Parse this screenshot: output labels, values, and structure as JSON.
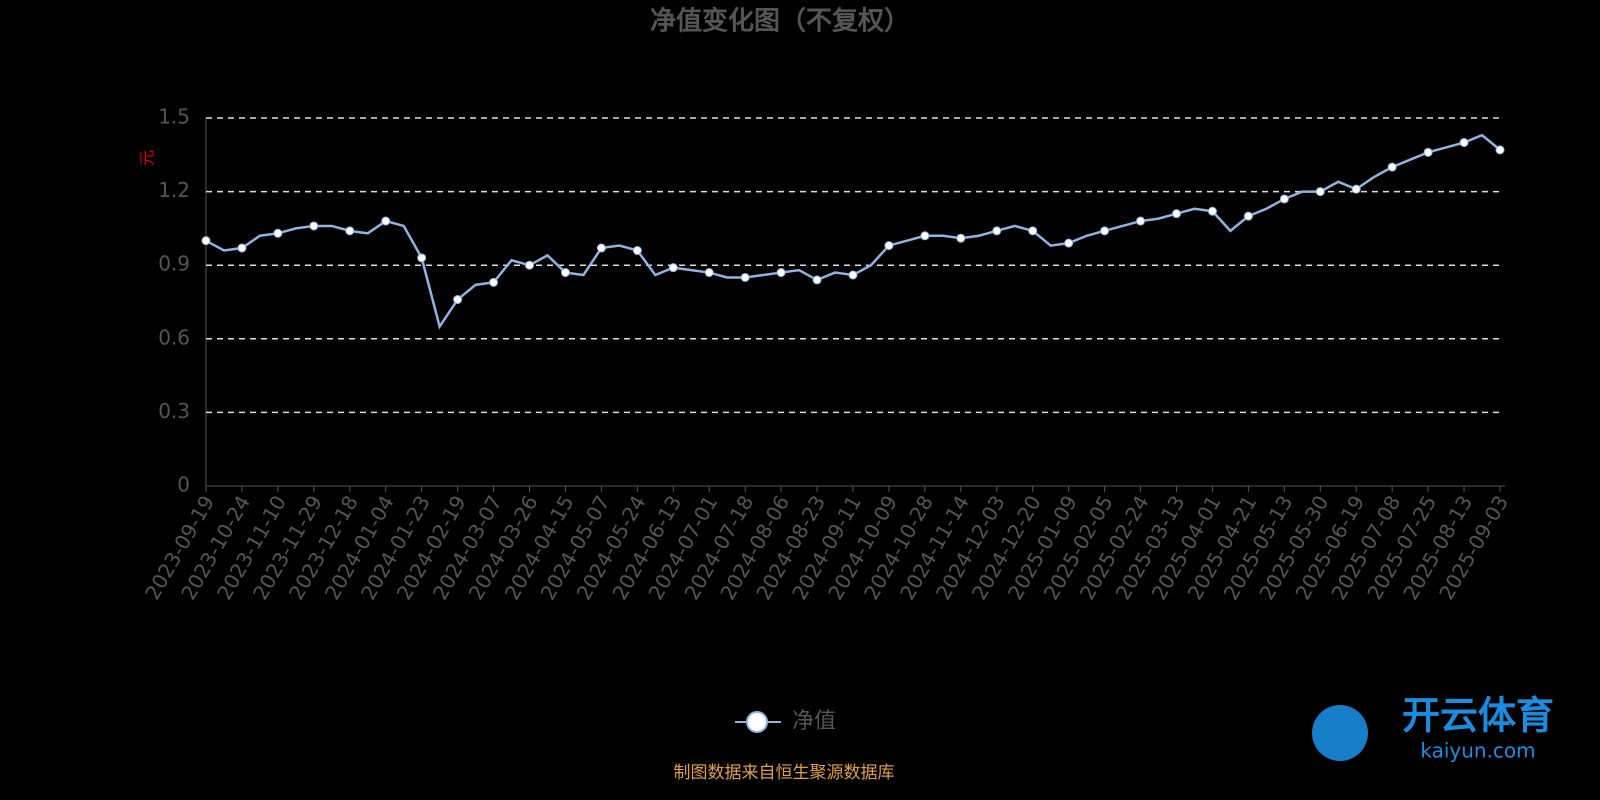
{
  "chart_data": {
    "type": "line",
    "title": "净值变化图（不复权）",
    "y_label": "元",
    "source": "制图数据来自恒生聚源数据库",
    "watermark": {
      "name": "开云体育",
      "site": "kaiyun.com"
    },
    "categories": [
      "2023-09-19",
      null,
      "2023-10-24",
      null,
      "2023-11-10",
      null,
      "2023-11-29",
      null,
      "2023-12-18",
      null,
      "2024-01-04",
      null,
      "2024-01-23",
      null,
      "2024-02-19",
      null,
      "2024-03-07",
      null,
      "2024-03-26",
      null,
      "2024-04-15",
      null,
      "2024-05-07",
      null,
      "2024-05-24",
      null,
      "2024-06-13",
      null,
      "2024-07-01",
      null,
      "2024-07-18",
      null,
      "2024-08-06",
      null,
      "2024-08-23",
      null,
      "2024-09-11",
      null,
      "2024-10-09",
      null,
      "2024-10-28",
      null,
      "2024-11-14",
      null,
      "2024-12-03",
      null,
      "2024-12-20",
      null,
      "2025-01-09",
      null,
      "2025-02-05",
      null,
      "2025-02-24",
      null,
      "2025-03-13",
      null,
      "2025-04-01",
      null,
      "2025-04-21",
      null,
      "2025-05-13",
      null,
      "2025-05-30",
      null,
      "2025-06-19",
      null,
      "2025-07-08",
      null,
      "2025-07-25",
      null,
      "2025-08-13",
      null,
      "2025-09-03"
    ],
    "series": [
      {
        "name": "净值",
        "color": "#8fb4e3",
        "values": [
          1.0,
          0.96,
          0.97,
          1.02,
          1.03,
          1.05,
          1.06,
          1.06,
          1.04,
          1.03,
          1.08,
          1.06,
          0.93,
          0.65,
          0.76,
          0.82,
          0.83,
          0.92,
          0.9,
          0.94,
          0.87,
          0.86,
          0.97,
          0.98,
          0.96,
          0.86,
          0.89,
          0.88,
          0.87,
          0.85,
          0.85,
          0.86,
          0.87,
          0.88,
          0.84,
          0.87,
          0.86,
          0.9,
          0.98,
          1.0,
          1.02,
          1.02,
          1.01,
          1.02,
          1.04,
          1.06,
          1.04,
          0.98,
          0.99,
          1.02,
          1.04,
          1.06,
          1.08,
          1.09,
          1.11,
          1.13,
          1.12,
          1.04,
          1.1,
          1.13,
          1.17,
          1.2,
          1.2,
          1.24,
          1.21,
          1.26,
          1.3,
          1.33,
          1.36,
          1.38,
          1.4,
          1.43,
          1.37
        ]
      }
    ],
    "ylim": [
      0,
      1.5
    ],
    "yticks": [
      0,
      0.3,
      0.6,
      0.9,
      1.2,
      1.5
    ],
    "grid": true
  }
}
